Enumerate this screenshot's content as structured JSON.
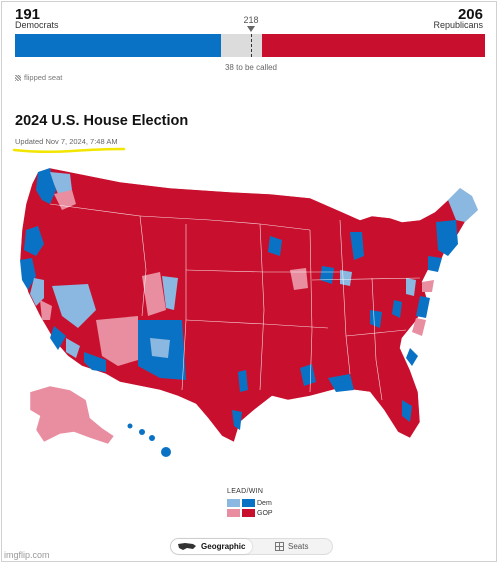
{
  "tally": {
    "dem_seats": "191",
    "dem_label": "Democrats",
    "rep_seats": "206",
    "rep_label": "Republicans",
    "majority": "218",
    "uncalled": "38 to be called",
    "flipped_label": "flipped seat",
    "bar_fractions": {
      "dem": 0.439,
      "tbd": 0.087,
      "rep": 0.474
    }
  },
  "header": {
    "title": "2024 U.S. House Election",
    "updated": "Updated Nov 7, 2024, 7:48 AM"
  },
  "legend": {
    "title": "LEAD/WIN",
    "dem": "Dem",
    "gop": "GOP"
  },
  "colors": {
    "dem_win": "#0a72c4",
    "dem_lead": "#8ab8e0",
    "gop_win": "#c8102e",
    "gop_lead": "#e88ea0",
    "highlight": "#f2e600"
  },
  "view_toggle": {
    "geographic": "Geographic",
    "seats": "Seats",
    "active": "geographic"
  },
  "watermark": "imgflip.com"
}
